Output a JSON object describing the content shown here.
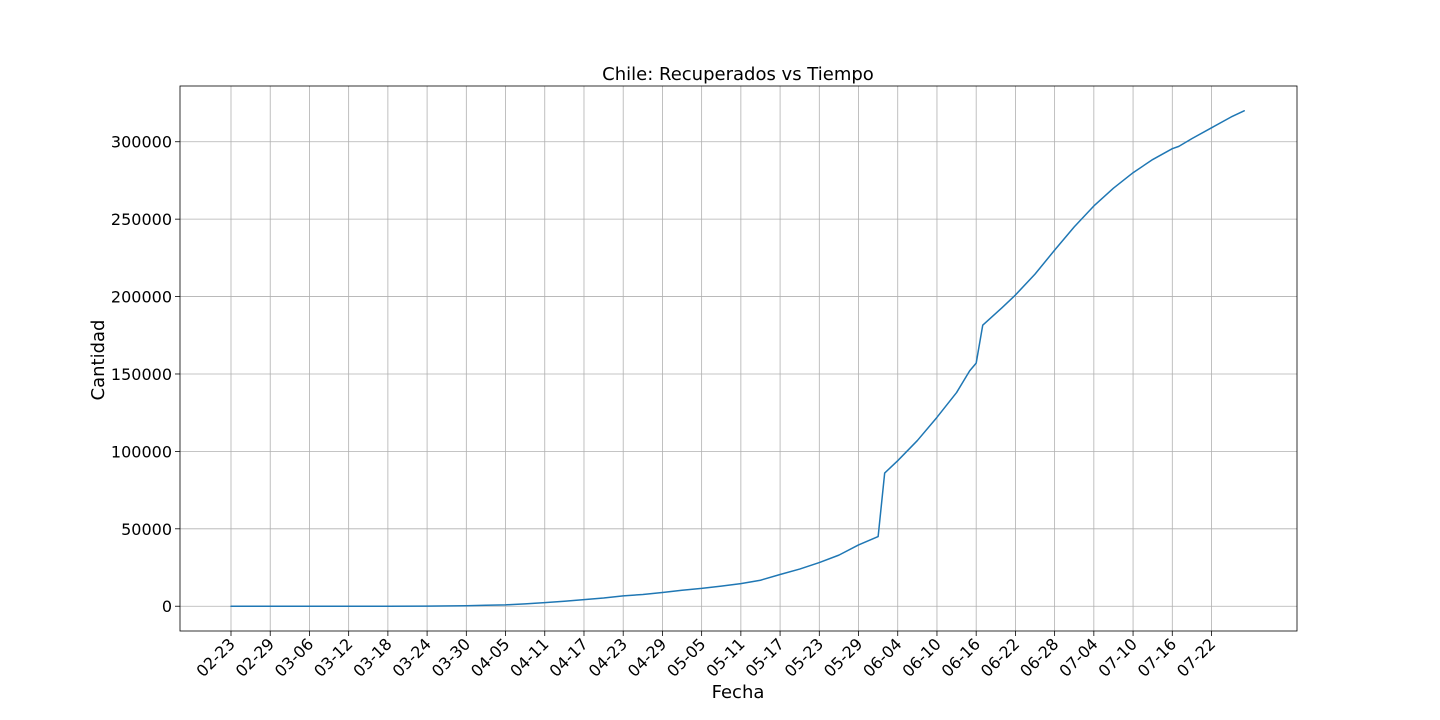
{
  "chart_data": {
    "type": "line",
    "title": "Chile: Recuperados vs Tiempo",
    "xlabel": "Fecha",
    "ylabel": "Cantidad",
    "grid": true,
    "x_tick_labels": [
      "02-23",
      "02-29",
      "03-06",
      "03-12",
      "03-18",
      "03-24",
      "03-30",
      "04-05",
      "04-11",
      "04-17",
      "04-23",
      "04-29",
      "05-05",
      "05-11",
      "05-17",
      "05-23",
      "05-29",
      "06-04",
      "06-10",
      "06-16",
      "06-22",
      "06-28",
      "07-04",
      "07-10",
      "07-16",
      "07-22"
    ],
    "y_ticks": [
      0,
      50000,
      100000,
      150000,
      200000,
      250000,
      300000
    ],
    "ylim": [
      -16000,
      336000
    ],
    "series": [
      {
        "color": "#1f77b4",
        "x": [
          "02-23",
          "02-29",
          "03-06",
          "03-12",
          "03-18",
          "03-24",
          "03-30",
          "04-02",
          "04-05",
          "04-08",
          "04-11",
          "04-14",
          "04-17",
          "04-20",
          "04-23",
          "04-26",
          "04-29",
          "05-02",
          "05-05",
          "05-08",
          "05-11",
          "05-14",
          "05-17",
          "05-20",
          "05-23",
          "05-26",
          "05-29",
          "06-01",
          "06-02",
          "06-04",
          "06-07",
          "06-10",
          "06-13",
          "06-15",
          "06-16",
          "06-17",
          "06-20",
          "06-22",
          "06-25",
          "06-28",
          "07-01",
          "07-04",
          "07-07",
          "07-10",
          "07-13",
          "07-16",
          "07-17",
          "07-19",
          "07-22",
          "07-25",
          "07-27"
        ],
        "values": [
          0,
          0,
          0,
          0,
          0,
          100,
          300,
          600,
          900,
          1500,
          2300,
          3200,
          4300,
          5300,
          6700,
          7600,
          8900,
          10300,
          11500,
          13000,
          14600,
          16800,
          20500,
          24000,
          28200,
          33000,
          39600,
          45000,
          86000,
          94000,
          107000,
          122000,
          138000,
          152000,
          157000,
          181500,
          193000,
          201000,
          214500,
          230000,
          245000,
          258500,
          270000,
          280000,
          288500,
          295500,
          297000,
          302000,
          309000,
          316000,
          320000
        ]
      }
    ]
  }
}
